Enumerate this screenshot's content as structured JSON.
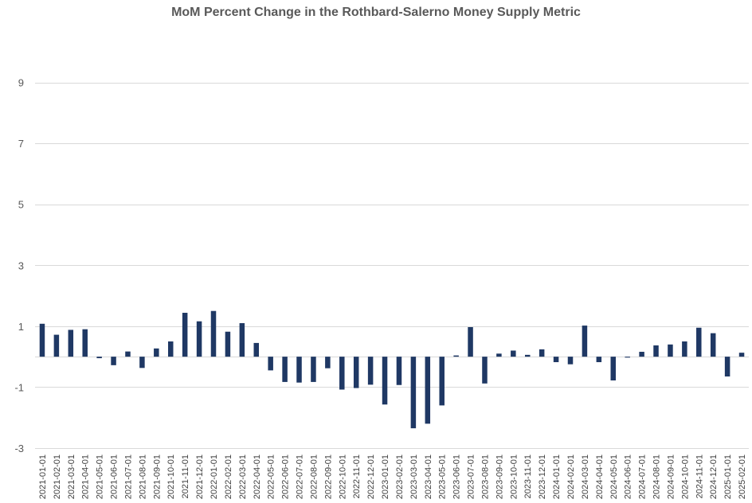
{
  "chart_data": {
    "type": "bar",
    "title": "MoM Percent Change in the Rothbard-Salerno Money Supply Metric",
    "xlabel": "",
    "ylabel": "",
    "ylim": [
      -3,
      11
    ],
    "yticks": [
      -3,
      -1,
      1,
      3,
      5,
      7,
      9
    ],
    "grid": true,
    "legend": "none",
    "bar_color": "#1F3864",
    "grid_color": "#D9D9D9",
    "text_color": "#595959",
    "categories": [
      "2021-01-01",
      "2021-02-01",
      "2021-03-01",
      "2021-04-01",
      "2021-05-01",
      "2021-06-01",
      "2021-07-01",
      "2021-08-01",
      "2021-09-01",
      "2021-10-01",
      "2021-11-01",
      "2021-12-01",
      "2022-01-01",
      "2022-02-01",
      "2022-03-01",
      "2022-04-01",
      "2022-05-01",
      "2022-06-01",
      "2022-07-01",
      "2022-08-01",
      "2022-09-01",
      "2022-10-01",
      "2022-11-01",
      "2022-12-01",
      "2023-01-01",
      "2023-02-01",
      "2023-03-01",
      "2023-04-01",
      "2023-05-01",
      "2023-06-01",
      "2023-07-01",
      "2023-08-01",
      "2023-09-01",
      "2023-10-01",
      "2023-11-01",
      "2023-12-01",
      "2024-01-01",
      "2024-02-01",
      "2024-03-01",
      "2024-04-01",
      "2024-05-01",
      "2024-06-01",
      "2024-07-01",
      "2024-08-01",
      "2024-09-01",
      "2024-10-01",
      "2024-11-01",
      "2024-12-01",
      "2025-01-01",
      "2025-02-01"
    ],
    "values": [
      1.08,
      0.72,
      0.88,
      0.9,
      -0.05,
      -0.28,
      0.17,
      -0.37,
      0.27,
      0.5,
      1.44,
      1.16,
      1.5,
      0.82,
      1.1,
      0.45,
      -0.45,
      -0.83,
      -0.85,
      -0.83,
      -0.38,
      -1.08,
      -1.03,
      -0.92,
      -1.57,
      -0.93,
      -2.35,
      -2.2,
      -1.6,
      0.04,
      0.97,
      -0.88,
      0.1,
      0.2,
      0.06,
      0.24,
      -0.18,
      -0.25,
      1.02,
      -0.18,
      -0.78,
      -0.03,
      0.16,
      0.37,
      0.4,
      0.5,
      0.95,
      0.77,
      -0.65,
      0.13
    ]
  }
}
